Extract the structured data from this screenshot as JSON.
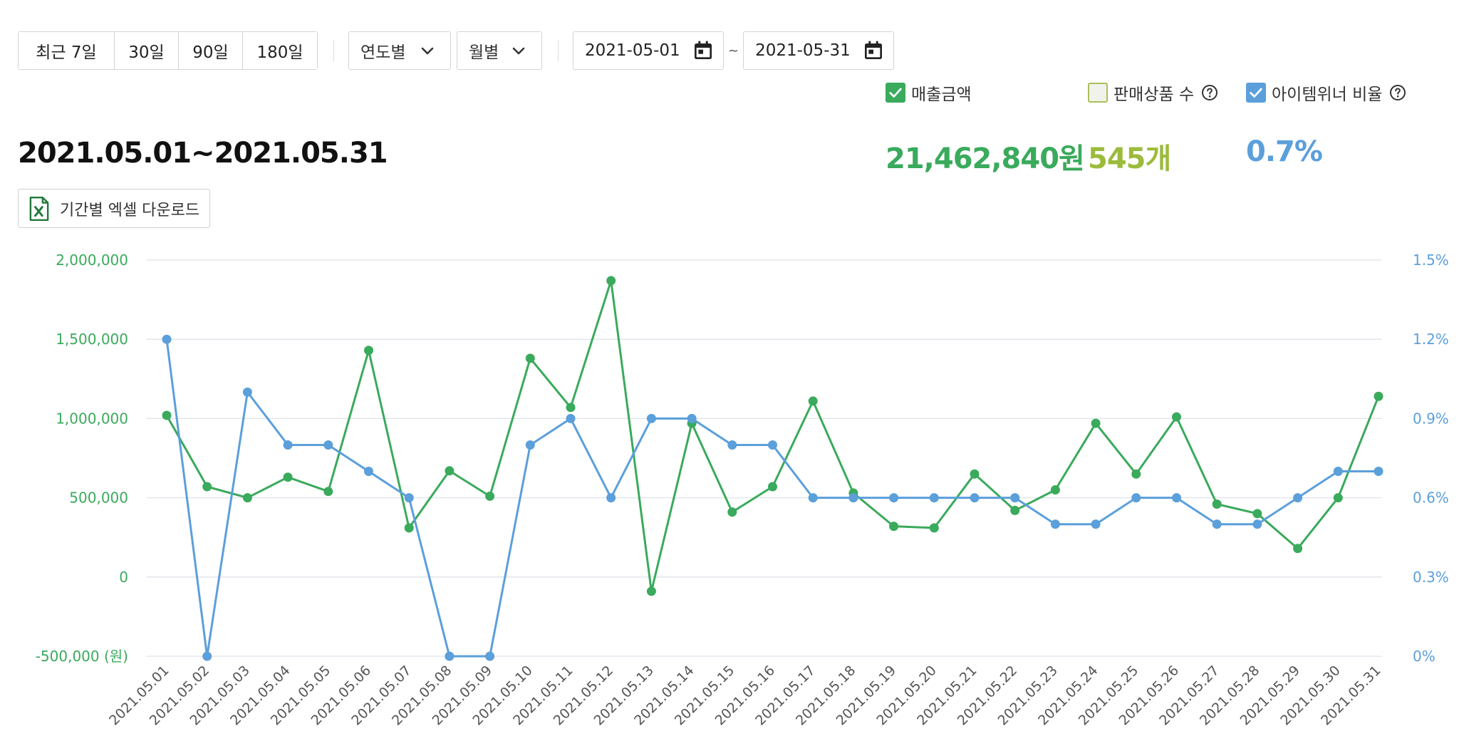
{
  "filters": {
    "quick_ranges": [
      "최근 7일",
      "30일",
      "90일",
      "180일"
    ],
    "year_select": "연도별",
    "month_select": "월별",
    "start_date": "2021-05-01",
    "date_separator": "~",
    "end_date": "2021-05-31"
  },
  "legend": {
    "sales": {
      "label": "매출금액",
      "checked": true,
      "color": "#3aaa5c"
    },
    "products": {
      "label": "판매상품 수",
      "checked": false,
      "color": "#9cbb3c"
    },
    "winner_ratio": {
      "label": "아이템위너 비율",
      "checked": true,
      "color": "#5b9fdb"
    }
  },
  "summary": {
    "period": "2021.05.01~2021.05.31",
    "sales_total": "21,462,840원",
    "products_total": "545개",
    "winner_ratio": "0.7%"
  },
  "excel_button": {
    "label": "기간별 엑셀 다운로드"
  },
  "icons": [
    "calendar-icon",
    "chevron-down-icon",
    "help-icon",
    "excel-file-icon",
    "checkmark-icon"
  ],
  "chart_data": {
    "type": "line",
    "categories": [
      "2021.05.01",
      "2021.05.02",
      "2021.05.03",
      "2021.05.04",
      "2021.05.05",
      "2021.05.06",
      "2021.05.07",
      "2021.05.08",
      "2021.05.09",
      "2021.05.10",
      "2021.05.11",
      "2021.05.12",
      "2021.05.13",
      "2021.05.14",
      "2021.05.15",
      "2021.05.16",
      "2021.05.17",
      "2021.05.18",
      "2021.05.19",
      "2021.05.20",
      "2021.05.21",
      "2021.05.22",
      "2021.05.23",
      "2021.05.24",
      "2021.05.25",
      "2021.05.26",
      "2021.05.27",
      "2021.05.28",
      "2021.05.29",
      "2021.05.30",
      "2021.05.31"
    ],
    "series": [
      {
        "name": "매출금액",
        "axis": "left",
        "color": "#3aaa5c",
        "values": [
          1020000,
          570000,
          500000,
          630000,
          540000,
          1430000,
          310000,
          670000,
          510000,
          1380000,
          1070000,
          1870000,
          -90000,
          970000,
          410000,
          570000,
          1110000,
          530000,
          320000,
          310000,
          650000,
          420000,
          550000,
          970000,
          650000,
          1010000,
          460000,
          400000,
          180000,
          500000,
          1140000
        ]
      },
      {
        "name": "아이템위너 비율",
        "axis": "right",
        "color": "#5b9fdb",
        "values": [
          1.2,
          0.0,
          1.0,
          0.8,
          0.8,
          0.7,
          0.6,
          0.0,
          0.0,
          0.8,
          0.9,
          0.6,
          0.9,
          0.9,
          0.8,
          0.8,
          0.6,
          0.6,
          0.6,
          0.6,
          0.6,
          0.6,
          0.5,
          0.5,
          0.6,
          0.6,
          0.5,
          0.5,
          0.6,
          0.7,
          0.7
        ]
      }
    ],
    "y_left": {
      "ticks": [
        "2,000,000",
        "1,500,000",
        "1,000,000",
        "500,000",
        "0",
        "-500,000 (원)"
      ],
      "range": [
        -500000,
        2000000
      ]
    },
    "y_right": {
      "ticks": [
        "1.5%",
        "1.2%",
        "0.9%",
        "0.6%",
        "0.3%",
        "0%"
      ],
      "range": [
        0,
        1.5
      ]
    },
    "grid": true,
    "xlabel": "",
    "ylabel": ""
  }
}
